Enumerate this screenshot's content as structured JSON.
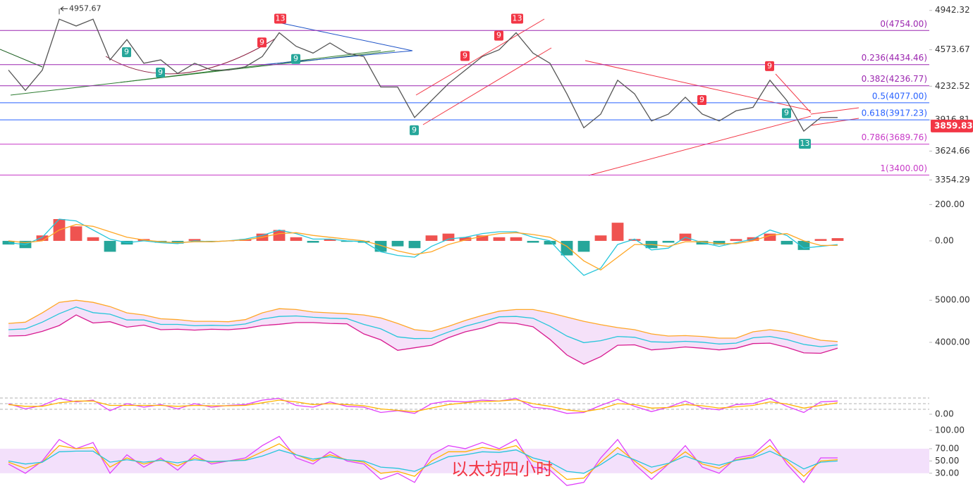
{
  "chart_data": [
    {
      "type": "line",
      "ylim": [
        3271.7,
        4986.8
      ],
      "yticks": [
        4942.32,
        4573.67,
        4232.52,
        3916.81,
        3624.66,
        3354.29
      ],
      "series": [
        {
          "color": "#555555",
          "values": [
            4383,
            4193,
            4383,
            4860,
            4796,
            4860,
            4479,
            4669,
            4447,
            4479,
            4352,
            4447,
            4383,
            4383,
            4415,
            4510,
            4733,
            4606,
            4542,
            4637,
            4542,
            4510,
            4225,
            4225,
            3939,
            4098,
            4256,
            4383,
            4510,
            4574,
            4733,
            4542,
            4447,
            4161,
            3843,
            3971,
            4288,
            4161,
            3907,
            3971,
            4129,
            3971,
            3907,
            4002,
            4034,
            4288,
            4098,
            3812,
            3939,
            3939
          ]
        }
      ],
      "levels": [
        {
          "label": "0(4754.00)",
          "value": 4754,
          "color": "#9c27b0"
        },
        {
          "label": "0.236(4434.46)",
          "value": 4434.46,
          "color": "#9c27b0"
        },
        {
          "label": "0.382(4236.77)",
          "value": 4236.77,
          "color": "#9c27b0"
        },
        {
          "label": "0.5(4077.00)",
          "value": 4077,
          "color": "#2962ff"
        },
        {
          "label": "0.618(3917.23)",
          "value": 3917.23,
          "color": "#2962ff"
        },
        {
          "label": "0.786(3689.76)",
          "value": 3689.76,
          "color": "#c83cc8"
        },
        {
          "label": "1(3400.00)",
          "value": 3400,
          "color": "#c83cc8"
        }
      ],
      "last_price": 3859.83,
      "last_price_color": "#f23645",
      "peak": 4957.67,
      "peak_at": 3,
      "markers": [
        {
          "label": "9",
          "at": 7,
          "color": "#26a69a",
          "position": "below"
        },
        {
          "label": "9",
          "at": 9,
          "color": "#26a69a",
          "position": "below"
        },
        {
          "label": "9",
          "at": 15,
          "color": "#f23645",
          "position": "above"
        },
        {
          "label": "13",
          "at": 16,
          "color": "#f23645",
          "position": "above"
        },
        {
          "label": "9",
          "at": 17,
          "color": "#26a69a",
          "position": "below"
        },
        {
          "label": "9",
          "at": 24,
          "color": "#26a69a",
          "position": "below"
        },
        {
          "label": "9",
          "at": 27,
          "color": "#f23645",
          "position": "above"
        },
        {
          "label": "9",
          "at": 29,
          "color": "#f23645",
          "position": "above"
        },
        {
          "label": "13",
          "at": 30,
          "color": "#f23645",
          "position": "above"
        },
        {
          "label": "9",
          "at": 41,
          "color": "#f23645",
          "position": "above"
        },
        {
          "label": "9",
          "at": 45,
          "color": "#f23645",
          "position": "above"
        },
        {
          "label": "9",
          "at": 46,
          "color": "#26a69a",
          "position": "below"
        },
        {
          "label": "13",
          "at": 47,
          "color": "#26a69a",
          "position": "below"
        }
      ]
    },
    {
      "type": "combo",
      "ylim": [
        -233,
        248
      ],
      "yticks": [
        {
          "value": 200,
          "label": "200.00"
        },
        {
          "value": 0,
          "label": "0.00"
        }
      ],
      "series": [
        {
          "type": "bar",
          "color": "#ef5350",
          "negative_color": "#26a69a",
          "values": [
            -20,
            -40,
            30,
            120,
            80,
            20,
            -60,
            -20,
            10,
            -10,
            -15,
            10,
            -5,
            0,
            10,
            40,
            60,
            20,
            -10,
            10,
            -5,
            -10,
            -60,
            -30,
            -40,
            30,
            40,
            20,
            30,
            20,
            20,
            -10,
            -20,
            -80,
            -60,
            30,
            100,
            10,
            -40,
            -10,
            40,
            -20,
            -20,
            10,
            20,
            40,
            -20,
            -50,
            10,
            15
          ]
        },
        {
          "type": "line",
          "color": "#26c6da",
          "values": [
            -10,
            -20,
            20,
            120,
            110,
            60,
            10,
            -10,
            0,
            -10,
            -15,
            0,
            -5,
            0,
            10,
            30,
            60,
            40,
            10,
            10,
            0,
            -5,
            -60,
            -80,
            -90,
            -30,
            10,
            20,
            40,
            50,
            50,
            20,
            0,
            -100,
            -190,
            -150,
            -20,
            10,
            -50,
            -40,
            20,
            -10,
            -30,
            -10,
            10,
            60,
            30,
            -40,
            -30,
            -20
          ]
        },
        {
          "type": "line",
          "color": "#ffa726",
          "values": [
            0,
            -10,
            0,
            60,
            90,
            80,
            50,
            20,
            5,
            -5,
            -10,
            -5,
            -5,
            0,
            5,
            20,
            40,
            45,
            30,
            20,
            10,
            0,
            -25,
            -55,
            -75,
            -60,
            -20,
            5,
            25,
            40,
            45,
            35,
            20,
            -30,
            -110,
            -160,
            -90,
            -20,
            -20,
            -30,
            -5,
            -5,
            -15,
            -15,
            0,
            30,
            40,
            0,
            -25,
            -25
          ]
        }
      ]
    },
    {
      "type": "band",
      "ylim": [
        3095,
        5238
      ],
      "yticks": [
        {
          "value": 5000,
          "label": "5000.00"
        },
        {
          "value": 4000,
          "label": "4000.00"
        }
      ],
      "band_color": "#f3d9f7",
      "series": [
        {
          "color": "#ffa726",
          "values": [
            4450,
            4480,
            4700,
            4950,
            5000,
            4950,
            4850,
            4700,
            4650,
            4560,
            4540,
            4500,
            4500,
            4490,
            4540,
            4700,
            4800,
            4780,
            4720,
            4700,
            4680,
            4650,
            4580,
            4450,
            4300,
            4260,
            4380,
            4520,
            4640,
            4740,
            4780,
            4780,
            4700,
            4600,
            4500,
            4420,
            4350,
            4300,
            4200,
            4150,
            4160,
            4140,
            4100,
            4100,
            4250,
            4300,
            4250,
            4150,
            4050,
            4020
          ]
        },
        {
          "color": "#26c6da",
          "values": [
            4300,
            4320,
            4479,
            4680,
            4839,
            4705,
            4669,
            4532,
            4532,
            4426,
            4426,
            4394,
            4404,
            4394,
            4436,
            4553,
            4616,
            4627,
            4595,
            4574,
            4563,
            4426,
            4320,
            4130,
            4087,
            4093,
            4246,
            4383,
            4489,
            4606,
            4616,
            4574,
            4383,
            4150,
            3992,
            4040,
            4140,
            4119,
            4013,
            4002,
            4024,
            4002,
            3960,
            3981,
            4108,
            4140,
            4066,
            3950,
            3897,
            3939
          ]
        },
        {
          "color": "#d81b90",
          "values": [
            4150,
            4160,
            4260,
            4400,
            4650,
            4460,
            4490,
            4360,
            4410,
            4300,
            4310,
            4290,
            4310,
            4300,
            4330,
            4400,
            4430,
            4470,
            4470,
            4450,
            4440,
            4200,
            4060,
            3810,
            3870,
            3930,
            4110,
            4250,
            4340,
            4470,
            4450,
            4370,
            4070,
            3700,
            3480,
            3660,
            3930,
            3940,
            3820,
            3850,
            3890,
            3860,
            3820,
            3860,
            3970,
            3980,
            3880,
            3750,
            3740,
            3860
          ]
        }
      ]
    },
    {
      "type": "line",
      "ylim": [
        -40,
        120
      ],
      "yticks": [
        {
          "value": 0,
          "label": "0.00"
        }
      ],
      "guides": [
        92,
        60,
        28
      ],
      "series": [
        {
          "color": "#e040fb",
          "values": [
            60,
            30,
            50,
            90,
            70,
            80,
            20,
            60,
            40,
            55,
            30,
            60,
            40,
            50,
            55,
            80,
            90,
            50,
            40,
            70,
            45,
            40,
            10,
            20,
            5,
            60,
            75,
            70,
            80,
            75,
            90,
            40,
            30,
            5,
            10,
            50,
            85,
            45,
            15,
            40,
            75,
            35,
            25,
            55,
            60,
            90,
            45,
            10,
            70,
            75
          ]
        },
        {
          "color": "#ffb300",
          "values": [
            55,
            45,
            45,
            65,
            75,
            75,
            50,
            50,
            50,
            50,
            45,
            50,
            48,
            48,
            50,
            65,
            80,
            70,
            55,
            60,
            55,
            48,
            30,
            22,
            15,
            35,
            55,
            65,
            72,
            75,
            82,
            60,
            45,
            25,
            15,
            30,
            60,
            55,
            35,
            38,
            55,
            48,
            35,
            42,
            50,
            70,
            58,
            35,
            50,
            65
          ]
        }
      ]
    },
    {
      "type": "line",
      "ylim": [
        1,
        109
      ],
      "yticks": [
        {
          "value": 100,
          "label": "100.00"
        },
        {
          "value": 70,
          "label": "70.00"
        },
        {
          "value": 50,
          "label": "50.00"
        },
        {
          "value": 30,
          "label": "30.00"
        }
      ],
      "band": [
        30,
        70
      ],
      "band_color": "#f3e0fb",
      "watermark": "以太坊四小时",
      "series": [
        {
          "color": "#e040fb",
          "values": [
            45,
            30,
            50,
            85,
            70,
            80,
            30,
            60,
            40,
            55,
            35,
            60,
            45,
            50,
            55,
            75,
            90,
            55,
            45,
            65,
            50,
            45,
            20,
            30,
            15,
            60,
            75,
            70,
            80,
            70,
            85,
            40,
            35,
            10,
            15,
            55,
            85,
            45,
            20,
            45,
            75,
            40,
            30,
            55,
            60,
            85,
            45,
            15,
            55,
            55
          ]
        },
        {
          "color": "#ffb300",
          "values": [
            48,
            38,
            48,
            75,
            70,
            72,
            40,
            55,
            45,
            52,
            42,
            55,
            48,
            50,
            52,
            65,
            78,
            60,
            50,
            60,
            52,
            48,
            30,
            33,
            25,
            50,
            65,
            65,
            72,
            68,
            75,
            50,
            42,
            20,
            22,
            48,
            72,
            50,
            30,
            45,
            65,
            45,
            38,
            52,
            57,
            75,
            50,
            25,
            50,
            52
          ]
        },
        {
          "color": "#26c6da",
          "values": [
            50,
            45,
            48,
            65,
            66,
            66,
            48,
            52,
            48,
            51,
            47,
            52,
            49,
            50,
            51,
            58,
            68,
            60,
            53,
            57,
            52,
            50,
            40,
            38,
            33,
            45,
            57,
            60,
            65,
            64,
            68,
            55,
            48,
            33,
            30,
            44,
            62,
            52,
            40,
            46,
            58,
            48,
            43,
            51,
            55,
            66,
            53,
            37,
            48,
            50
          ]
        }
      ]
    }
  ]
}
